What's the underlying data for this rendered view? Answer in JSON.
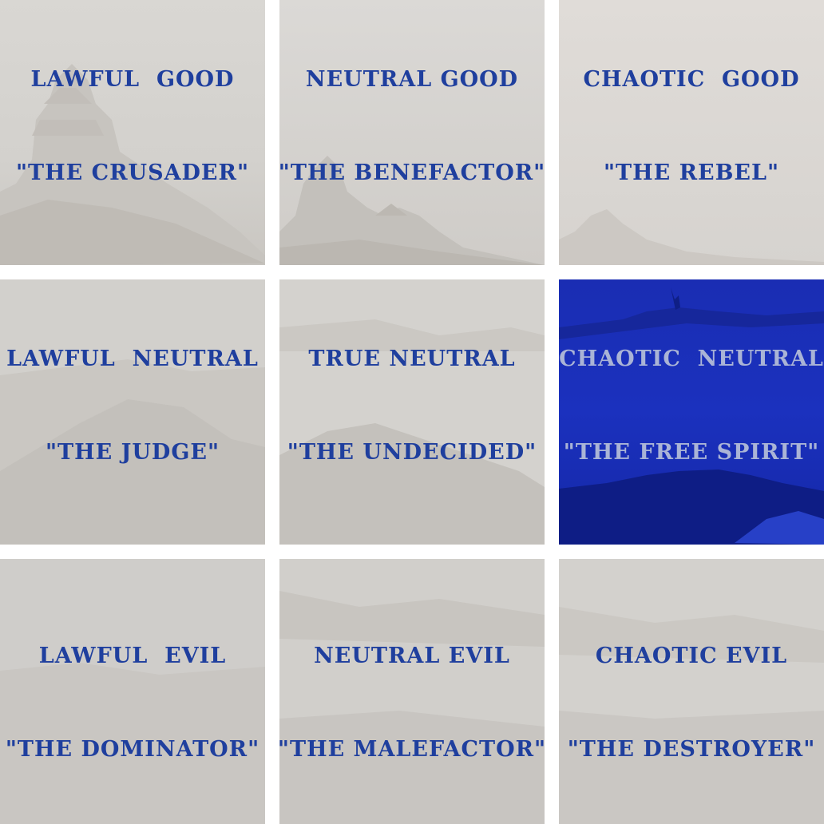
{
  "colors": {
    "tile_bg": "#d6d4d1",
    "text": "#1f3f9e",
    "selected_bg": "#1a2fb8",
    "selected_text": "#aab4d6"
  },
  "cells": [
    {
      "line1": "LAWFUL  GOOD",
      "line2": "\"THE CRUSADER\"",
      "selected": false
    },
    {
      "line1": "NEUTRAL GOOD",
      "line2": "\"THE BENEFACTOR\"",
      "selected": false
    },
    {
      "line1": "CHAOTIC  GOOD",
      "line2": "\"THE REBEL\"",
      "selected": false
    },
    {
      "line1": "LAWFUL  NEUTRAL",
      "line2": "\"THE JUDGE\"",
      "selected": false
    },
    {
      "line1": "TRUE NEUTRAL",
      "line2": "\"THE UNDECIDED\"",
      "selected": false
    },
    {
      "line1": "CHAOTIC  NEUTRAL",
      "line2": "\"THE FREE SPIRIT\"",
      "selected": true
    },
    {
      "line1": "LAWFUL  EVIL",
      "line2": "\"THE DOMINATOR\"",
      "selected": false
    },
    {
      "line1": "NEUTRAL EVIL",
      "line2": "\"THE MALEFACTOR\"",
      "selected": false
    },
    {
      "line1": "CHAOTIC EVIL",
      "line2": "\"THE DESTROYER\"",
      "selected": false
    }
  ]
}
